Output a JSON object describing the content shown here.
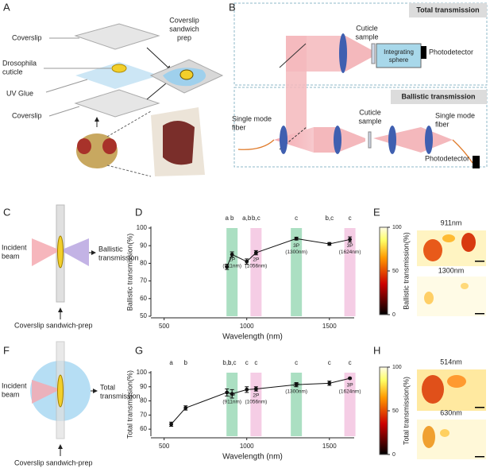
{
  "panel_labels": [
    "A",
    "B",
    "C",
    "D",
    "E",
    "F",
    "G",
    "H"
  ],
  "panel_a": {
    "layers": [
      [
        "Coverslip"
      ],
      [
        "Drosophila",
        "cuticle"
      ],
      [
        "UV Glue"
      ],
      [
        "Coverslip"
      ]
    ],
    "prep": [
      "Coverslip",
      "sandwich",
      "prep"
    ]
  },
  "panel_b": {
    "total": "Total transmission",
    "ballistic": "Ballistic transmission",
    "top_sample": [
      "Cuticle",
      "sample"
    ],
    "sphere": [
      "Integrating",
      "sphere"
    ],
    "top_detector": "Photodetector",
    "fiber_in": [
      "Single mode",
      "fiber"
    ],
    "bottom_sample": [
      "Cuticle",
      "sample"
    ],
    "fiber_out": [
      "Single mode",
      "fiber"
    ],
    "bottom_detector": "Photodetector"
  },
  "panel_c": {
    "incident": [
      "Incident",
      "beam"
    ],
    "output": [
      "Ballistic",
      "transmission"
    ],
    "caption": "Coverslip sandwich-prep"
  },
  "panel_f": {
    "incident": [
      "Incident",
      "beam"
    ],
    "output": [
      "Total",
      "transmission"
    ],
    "caption": "Coverslip sandwich-prep"
  },
  "panel_e": {
    "colorbar_label": "Ballistic transmission(%)",
    "colorbar_ticks": [
      0,
      50,
      100
    ],
    "images": [
      "911nm",
      "1300nm"
    ]
  },
  "panel_h": {
    "colorbar_label": "Total transmission(%)",
    "colorbar_ticks": [
      0,
      50,
      100
    ],
    "images": [
      "514nm",
      "630nm"
    ]
  },
  "chart_data": [
    {
      "type": "line",
      "xlabel": "Wavelength (nm)",
      "ylabel": "Ballistic transmission(%)",
      "x": [
        880,
        911,
        1000,
        1056,
        1300,
        1500,
        1624
      ],
      "values": [
        78,
        85,
        81,
        86,
        94,
        91,
        93.5
      ],
      "errors": [
        1.5,
        1.5,
        1.5,
        1.2,
        0.8,
        0.8,
        1.5
      ],
      "letters": [
        "a",
        "b",
        "a,b",
        "b,c",
        "c",
        "b,c",
        "c"
      ],
      "xlim": [
        420,
        1650
      ],
      "xticks": [
        500,
        1000,
        1500
      ],
      "ylim": [
        50,
        100
      ],
      "yticks": [
        50,
        60,
        70,
        80,
        90,
        100
      ],
      "color": "#111111",
      "bands": [
        {
          "x": 911,
          "label": [
            "2P",
            "(911nm)"
          ],
          "color": "#8fd4ad",
          "text_color": "#2f9f86"
        },
        {
          "x": 1056,
          "label": [
            "2P",
            "(1056nm)"
          ],
          "color": "#f2bcdc",
          "text_color": "#d1389a"
        },
        {
          "x": 1300,
          "label": [
            "3P",
            "(1300nm)"
          ],
          "color": "#8fd4ad",
          "text_color": "#2f9f86"
        },
        {
          "x": 1624,
          "label": [
            "3P",
            "(1624nm)"
          ],
          "color": "#f2bcdc",
          "text_color": "#d1389a"
        }
      ]
    },
    {
      "type": "line",
      "xlabel": "Wavelength (nm)",
      "ylabel": "Total transmission(%)",
      "x": [
        543,
        630,
        880,
        911,
        1000,
        1056,
        1300,
        1500,
        1624
      ],
      "values": [
        63.5,
        75,
        86,
        85,
        88,
        88.5,
        91.5,
        92.5,
        96
      ],
      "errors": [
        1.5,
        1.5,
        2.5,
        3,
        2,
        1.5,
        1.5,
        1.5,
        0.5
      ],
      "letters": [
        "a",
        "b",
        "b,c",
        "b,c",
        "c",
        "c",
        "c",
        "c",
        "c"
      ],
      "xlim": [
        420,
        1650
      ],
      "xticks": [
        500,
        1000,
        1500
      ],
      "ylim": [
        55,
        100
      ],
      "yticks": [
        60,
        70,
        80,
        90,
        100
      ],
      "color": "#111111",
      "bands": [
        {
          "x": 911,
          "label": [
            "2P",
            "(911nm)"
          ],
          "color": "#8fd4ad",
          "text_color": "#2f9f86"
        },
        {
          "x": 1056,
          "label": [
            "2P",
            "(1056nm)"
          ],
          "color": "#f2bcdc",
          "text_color": "#d1389a"
        },
        {
          "x": 1300,
          "label": [
            "3P",
            "(1300nm)"
          ],
          "color": "#8fd4ad",
          "text_color": "#2f9f86"
        },
        {
          "x": 1624,
          "label": [
            "3P",
            "(1624nm)"
          ],
          "color": "#f2bcdc",
          "text_color": "#d1389a"
        }
      ]
    }
  ]
}
